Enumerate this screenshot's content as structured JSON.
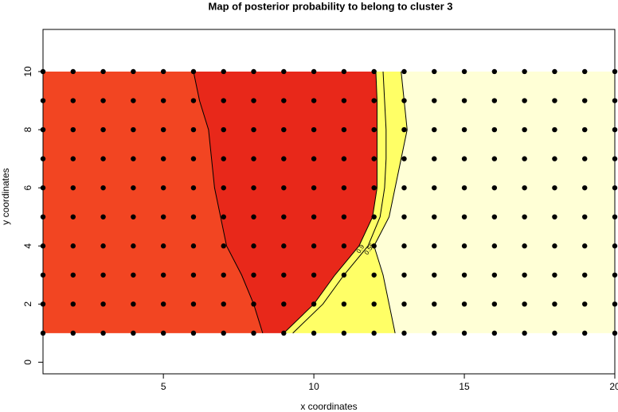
{
  "chart_data": {
    "type": "contour-map",
    "title": "Map of posterior probability to belong to cluster  3",
    "x_label": "x coordinates",
    "y_label": "y coordinates",
    "xlim": [
      1,
      20
    ],
    "ylim": [
      -0.4,
      11.45
    ],
    "xticks": [
      5,
      10,
      15,
      20
    ],
    "yticks": [
      0,
      2,
      4,
      6,
      8,
      10
    ],
    "rows": [
      1,
      2,
      3,
      4,
      5,
      6,
      7,
      8,
      9,
      10
    ],
    "contours": [
      {
        "x": [
          8.3,
          8.0,
          7.6,
          7.1,
          6.9,
          6.7,
          6.6,
          6.5,
          6.2,
          6.0
        ]
      },
      {
        "x": [
          9.0,
          10.0,
          10.7,
          11.5,
          11.95,
          12.1,
          12.1,
          12.1,
          12.1,
          12.06
        ],
        "label": "0.9"
      },
      {
        "x": [
          9.3,
          10.3,
          11.0,
          11.8,
          12.2,
          12.35,
          12.4,
          12.4,
          12.35,
          12.3
        ],
        "label": "0.55"
      },
      {
        "x": [
          12.7,
          12.5,
          12.3,
          12.0,
          12.5,
          12.7,
          12.9,
          13.1,
          13.0,
          12.9
        ]
      }
    ],
    "fills": [
      "#f24522",
      "#e8281a",
      "#ffff66",
      "#ffffd6"
    ],
    "point_color": "#000000",
    "points": {
      "x": [
        1,
        2,
        3,
        4,
        5,
        6,
        7,
        8,
        9,
        10,
        11,
        12,
        13,
        14,
        15,
        16,
        17,
        18,
        19,
        20
      ],
      "y": [
        1,
        2,
        3,
        4,
        5,
        6,
        7,
        8,
        9,
        10
      ]
    }
  }
}
